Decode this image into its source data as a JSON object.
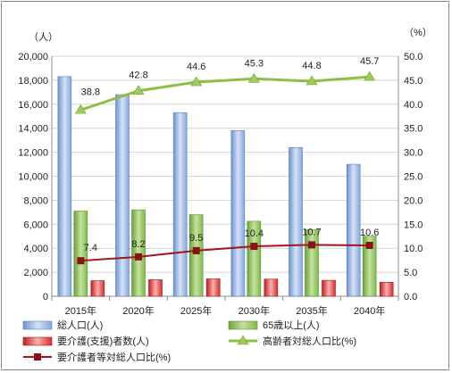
{
  "chart_data": {
    "type": "bar",
    "categories": [
      "2015年",
      "2020年",
      "2025年",
      "2030年",
      "2035年",
      "2040年"
    ],
    "y_left": {
      "unit_label": "（人）",
      "range": [
        0,
        20000
      ],
      "ticks": [
        "0",
        "2,000",
        "4,000",
        "6,000",
        "8,000",
        "10,000",
        "12,000",
        "14,000",
        "16,000",
        "18,000",
        "20,000"
      ]
    },
    "y_right": {
      "unit_label": "（%）",
      "range": [
        0,
        50
      ],
      "ticks": [
        "0.0",
        "5.0",
        "10.0",
        "15.0",
        "20.0",
        "25.0",
        "30.0",
        "35.0",
        "40.0",
        "45.0",
        "50.0"
      ]
    },
    "grid": true,
    "legend_position": "bottom",
    "series": [
      {
        "name": "総人口(人)",
        "kind": "bar",
        "axis": "left",
        "color": "#9db9e5",
        "values": [
          18300,
          16800,
          15300,
          13800,
          12400,
          11000
        ]
      },
      {
        "name": "65歳以上(人)",
        "kind": "bar",
        "axis": "left",
        "color": "#8fc05a",
        "values": [
          7100,
          7200,
          6800,
          6250,
          5550,
          5000
        ]
      },
      {
        "name": "要介護(支援)者数(人)",
        "kind": "bar",
        "axis": "left",
        "color": "#e23b3b",
        "values": [
          1300,
          1380,
          1450,
          1430,
          1330,
          1170
        ]
      },
      {
        "name": "高齢者対総人口比(%)",
        "kind": "line",
        "axis": "right",
        "color": "#8ebf45",
        "marker": "triangle",
        "values": [
          38.8,
          42.8,
          44.6,
          45.3,
          44.8,
          45.7
        ],
        "labels": [
          "38.8",
          "42.8",
          "44.6",
          "45.3",
          "44.8",
          "45.7"
        ]
      },
      {
        "name": "要介護者等対総人口比(%)",
        "kind": "line",
        "axis": "right",
        "color": "#a0161c",
        "marker": "square",
        "values": [
          7.4,
          8.2,
          9.5,
          10.4,
          10.7,
          10.6
        ],
        "labels": [
          "7.4",
          "8.2",
          "9.5",
          "10.4",
          "10.7",
          "10.6"
        ]
      }
    ]
  }
}
